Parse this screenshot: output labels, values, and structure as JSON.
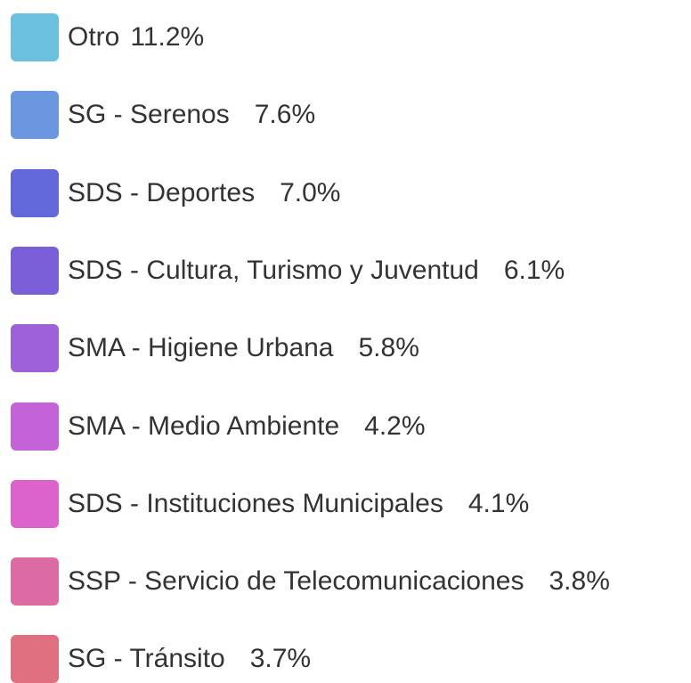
{
  "legend": {
    "items": [
      {
        "label": "Otro",
        "value": "11.2%",
        "color": "#6bbfdf"
      },
      {
        "label": "SG - Serenos",
        "value": "7.6%",
        "color": "#6a97e0"
      },
      {
        "label": "SDS - Deportes",
        "value": "7.0%",
        "color": "#6068da"
      },
      {
        "label": "SDS - Cultura, Turismo y Juventud",
        "value": "6.1%",
        "color": "#7b5fd8"
      },
      {
        "label": "SMA - Higiene Urbana",
        "value": "5.8%",
        "color": "#9e62d8"
      },
      {
        "label": "SMA - Medio Ambiente",
        "value": "4.2%",
        "color": "#c463d8"
      },
      {
        "label": "SDS - Instituciones Municipales",
        "value": "4.1%",
        "color": "#dc62cc"
      },
      {
        "label": "SSP - Servicio de Telecomunicaciones",
        "value": "3.8%",
        "color": "#dc6aa3"
      },
      {
        "label": "SG - Tránsito",
        "value": "3.7%",
        "color": "#e0707f"
      }
    ]
  }
}
